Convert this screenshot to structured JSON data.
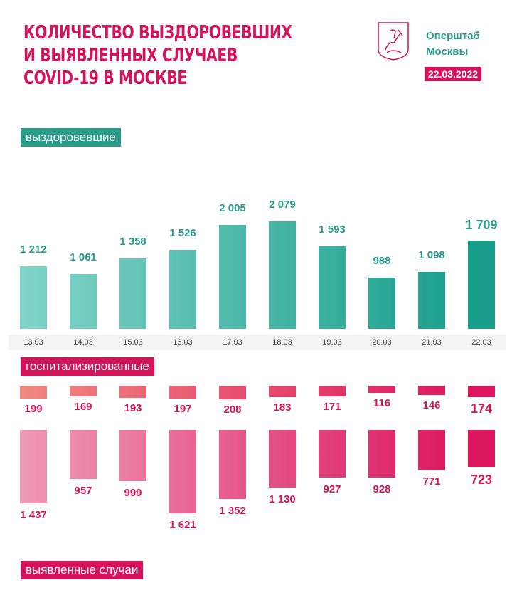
{
  "header": {
    "title_lines": [
      "КОЛИЧЕСТВО ВЫЗДОРОВЕВШИХ",
      "И ВЫЯВЛЕННЫХ СЛУЧАЕВ",
      "COVID-19 В МОСКВЕ"
    ],
    "org_lines": [
      "Оперштаб",
      "Москвы"
    ],
    "date": "22.03.2022",
    "logo": "moscow-coat-of-arms"
  },
  "chart_data": [
    {
      "type": "bar",
      "title": "выздоровевшие",
      "categories": [
        "13.03",
        "14.03",
        "15.03",
        "16.03",
        "17.03",
        "18.03",
        "19.03",
        "20.03",
        "21.03",
        "22.03"
      ],
      "values": [
        1212,
        1061,
        1358,
        1526,
        2005,
        2079,
        1593,
        988,
        1098,
        1709
      ],
      "labels": [
        "1 212",
        "1 061",
        "1 358",
        "1 526",
        "2 005",
        "2 079",
        "1 593",
        "988",
        "1 098",
        "1 709"
      ],
      "colors": [
        "#82d4c9",
        "#1a9e8c"
      ]
    },
    {
      "type": "bar",
      "title": "госпитализированные",
      "categories": [
        "13.03",
        "14.03",
        "15.03",
        "16.03",
        "17.03",
        "18.03",
        "19.03",
        "20.03",
        "21.03",
        "22.03"
      ],
      "values": [
        199,
        169,
        193,
        197,
        208,
        183,
        171,
        116,
        146,
        174
      ],
      "labels": [
        "199",
        "169",
        "193",
        "197",
        "208",
        "183",
        "171",
        "116",
        "146",
        "174"
      ],
      "colors": [
        "#f08a80",
        "#de1660"
      ]
    },
    {
      "type": "bar",
      "title": "выявленные случаи",
      "orientation": "downward",
      "categories": [
        "13.03",
        "14.03",
        "15.03",
        "16.03",
        "17.03",
        "18.03",
        "19.03",
        "20.03",
        "21.03",
        "22.03"
      ],
      "values": [
        1437,
        957,
        999,
        1621,
        1352,
        1130,
        927,
        928,
        771,
        723
      ],
      "labels": [
        "1 437",
        "957",
        "999",
        "1 621",
        "1 352",
        "1 130",
        "927",
        "928",
        "771",
        "723"
      ],
      "colors": [
        "#ef9bb6",
        "#dc1760"
      ]
    }
  ]
}
